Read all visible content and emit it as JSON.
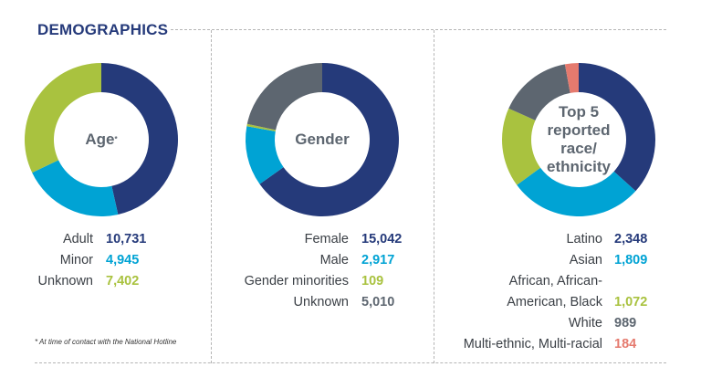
{
  "title": "DEMOGRAPHICS",
  "footnote": "* At time of contact with the National Hotline",
  "colors": {
    "navy": "#253a7a",
    "cyan": "#00a3d4",
    "green": "#a9c23f",
    "gray": "#5d6670",
    "salmon": "#e57a6e"
  },
  "chart_data": [
    {
      "type": "pie",
      "donut": true,
      "title": "Age",
      "title_marker": "*",
      "categories": [
        "Adult",
        "Minor",
        "Unknown"
      ],
      "values": [
        10731,
        4945,
        7402
      ],
      "value_labels": [
        "10,731",
        "4,945",
        "7,402"
      ],
      "colors": [
        "#253a7a",
        "#00a3d4",
        "#a9c23f"
      ]
    },
    {
      "type": "pie",
      "donut": true,
      "title": "Gender",
      "categories": [
        "Female",
        "Male",
        "Gender minorities",
        "Unknown"
      ],
      "values": [
        15042,
        2917,
        109,
        5010
      ],
      "value_labels": [
        "15,042",
        "2,917",
        "109",
        "5,010"
      ],
      "colors": [
        "#253a7a",
        "#00a3d4",
        "#a9c23f",
        "#5d6670"
      ]
    },
    {
      "type": "pie",
      "donut": true,
      "title": "Top 5 reported race/ ethnicity",
      "title_lines": [
        "Top 5",
        "reported",
        "race/",
        "ethnicity"
      ],
      "categories": [
        "Latino",
        "Asian",
        "African, African-American, Black",
        "White",
        "Multi-ethnic, Multi-racial"
      ],
      "category_lines": [
        [
          "Latino"
        ],
        [
          "Asian"
        ],
        [
          "African, African-",
          "American, Black"
        ],
        [
          "White"
        ],
        [
          "Multi-ethnic, Multi-racial"
        ]
      ],
      "values": [
        2348,
        1809,
        1072,
        989,
        184
      ],
      "value_labels": [
        "2,348",
        "1,809",
        "1,072",
        "989",
        "184"
      ],
      "colors": [
        "#253a7a",
        "#00a3d4",
        "#a9c23f",
        "#5d6670",
        "#e57a6e"
      ]
    }
  ]
}
